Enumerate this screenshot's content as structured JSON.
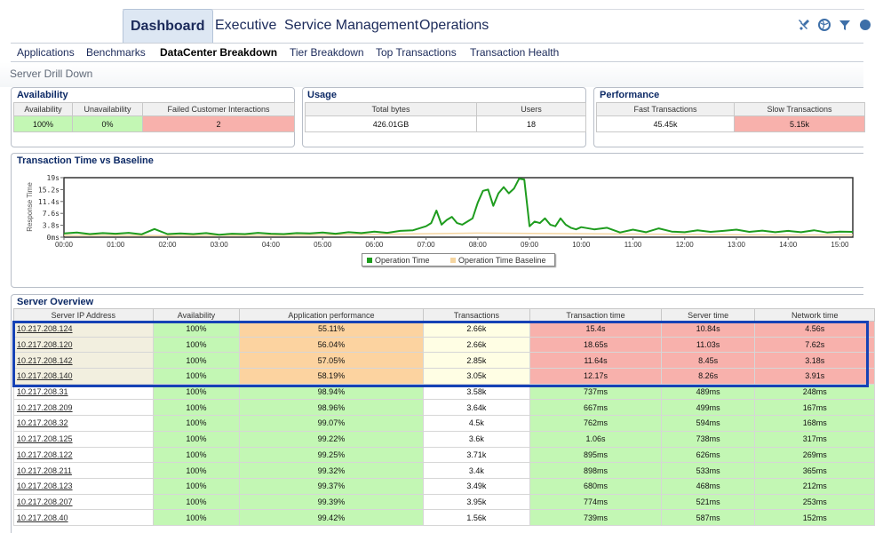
{
  "nav": {
    "main_tabs": [
      "Dashboard",
      "Executive",
      "Service Management",
      "Operations"
    ],
    "sub_tabs": [
      "Applications",
      "Benchmarks",
      "DataCenter Breakdown",
      "Tier Breakdown",
      "Top Transactions",
      "Transaction Health"
    ],
    "icons": [
      "tools-icon",
      "globe-icon",
      "filter-icon",
      "help-icon"
    ]
  },
  "page": {
    "title": "Server Drill Down"
  },
  "availability": {
    "title": "Availability",
    "headers": [
      "Availability",
      "Unavailability",
      "Failed Customer Interactions"
    ],
    "values": [
      "100%",
      "0%",
      "2"
    ]
  },
  "usage": {
    "title": "Usage",
    "headers": [
      "Total bytes",
      "Users"
    ],
    "values": [
      "426.01GB",
      "18"
    ]
  },
  "performance": {
    "title": "Performance",
    "headers": [
      "Fast Transactions",
      "Slow Transactions"
    ],
    "values": [
      "45.45k",
      "5.15k"
    ]
  },
  "chart_data": {
    "type": "line",
    "title": "Transaction Time vs Baseline",
    "ylabel": "Response Time",
    "xlabel": "",
    "y_ticks": [
      "0ms",
      "3.8s",
      "7.6s",
      "11.4s",
      "15.2s",
      "19s"
    ],
    "ylim": [
      0,
      19
    ],
    "x_ticks": [
      "00:00",
      "01:00",
      "02:00",
      "03:00",
      "04:00",
      "05:00",
      "06:00",
      "07:00",
      "08:00",
      "09:00",
      "10:00",
      "11:00",
      "12:00",
      "13:00",
      "14:00",
      "15:00"
    ],
    "legend_placement": "bottom-center",
    "series": [
      {
        "name": "Operation Time",
        "color": "#1e9c1e",
        "x_hours": [
          0,
          0.25,
          0.5,
          0.75,
          1,
          1.25,
          1.5,
          1.75,
          2,
          2.25,
          2.5,
          2.75,
          3,
          3.25,
          3.5,
          3.75,
          4,
          4.25,
          4.5,
          4.75,
          5,
          5.25,
          5.5,
          5.75,
          6,
          6.25,
          6.5,
          6.75,
          7,
          7.1,
          7.2,
          7.3,
          7.4,
          7.5,
          7.6,
          7.7,
          7.8,
          7.9,
          8,
          8.1,
          8.2,
          8.3,
          8.4,
          8.5,
          8.6,
          8.7,
          8.8,
          8.9,
          9,
          9.1,
          9.2,
          9.3,
          9.4,
          9.5,
          9.6,
          9.7,
          9.8,
          9.9,
          10,
          10.25,
          10.5,
          10.75,
          11,
          11.25,
          11.5,
          11.75,
          12,
          12.25,
          12.5,
          12.75,
          13,
          13.25,
          13.5,
          13.75,
          14,
          14.25,
          14.5,
          14.75,
          15,
          15.25
        ],
        "values": [
          1.2,
          1.5,
          1.0,
          1.3,
          1.1,
          1.4,
          0.9,
          2.6,
          1.0,
          1.2,
          1.0,
          1.3,
          0.8,
          1.1,
          1.0,
          1.4,
          1.1,
          1.0,
          1.3,
          1.2,
          1.5,
          1.1,
          1.6,
          1.3,
          1.8,
          1.4,
          2.0,
          2.2,
          3.5,
          4.5,
          8.5,
          4.0,
          5.5,
          6.5,
          4.5,
          4.0,
          5.0,
          6.0,
          11.0,
          14.8,
          15.2,
          10.0,
          14.0,
          16.0,
          14.0,
          15.5,
          18.7,
          18.4,
          3.5,
          5.0,
          4.5,
          6.0,
          4.0,
          3.5,
          6.0,
          4.0,
          3.0,
          2.5,
          3.2,
          2.5,
          3.0,
          1.5,
          2.4,
          1.6,
          2.8,
          1.8,
          1.6,
          2.2,
          1.7,
          2.0,
          2.4,
          1.7,
          2.1,
          1.6,
          2.0,
          1.6,
          2.2,
          1.5,
          1.8,
          1.7
        ]
      },
      {
        "name": "Operation Time Baseline",
        "color": "#f5d5a0",
        "x_hours": [
          0,
          1,
          2,
          3,
          4,
          5,
          6,
          7,
          8,
          9,
          10,
          11,
          12,
          13,
          14,
          15,
          15.25
        ],
        "values": [
          0.6,
          0.6,
          0.5,
          0.6,
          0.6,
          0.7,
          0.9,
          1.1,
          1.3,
          1.2,
          1.1,
          1.0,
          0.9,
          0.8,
          0.7,
          0.7,
          0.7
        ]
      }
    ]
  },
  "server_overview": {
    "title": "Server Overview",
    "headers": [
      "Server IP Address",
      "Availability",
      "Application performance",
      "Transactions",
      "Transaction time",
      "Server time",
      "Network time"
    ],
    "rows": [
      [
        "10.217.208.124",
        "100%",
        "55.11%",
        "2.66k",
        "15.4s",
        "10.84s",
        "4.56s"
      ],
      [
        "10.217.208.120",
        "100%",
        "56.04%",
        "2.66k",
        "18.65s",
        "11.03s",
        "7.62s"
      ],
      [
        "10.217.208.142",
        "100%",
        "57.05%",
        "2.85k",
        "11.64s",
        "8.45s",
        "3.18s"
      ],
      [
        "10.217.208.140",
        "100%",
        "58.19%",
        "3.05k",
        "12.17s",
        "8.26s",
        "3.91s"
      ],
      [
        "10.217.208.31",
        "100%",
        "98.94%",
        "3.58k",
        "737ms",
        "489ms",
        "248ms"
      ],
      [
        "10.217.208.209",
        "100%",
        "98.96%",
        "3.64k",
        "667ms",
        "499ms",
        "167ms"
      ],
      [
        "10.217.208.32",
        "100%",
        "99.07%",
        "4.5k",
        "762ms",
        "594ms",
        "168ms"
      ],
      [
        "10.217.208.125",
        "100%",
        "99.22%",
        "3.6k",
        "1.06s",
        "738ms",
        "317ms"
      ],
      [
        "10.217.208.122",
        "100%",
        "99.25%",
        "3.71k",
        "895ms",
        "626ms",
        "269ms"
      ],
      [
        "10.217.208.211",
        "100%",
        "99.32%",
        "3.4k",
        "898ms",
        "533ms",
        "365ms"
      ],
      [
        "10.217.208.123",
        "100%",
        "99.37%",
        "3.49k",
        "680ms",
        "468ms",
        "212ms"
      ],
      [
        "10.217.208.207",
        "100%",
        "99.39%",
        "3.95k",
        "774ms",
        "521ms",
        "253ms"
      ],
      [
        "10.217.208.40",
        "100%",
        "99.42%",
        "1.56k",
        "739ms",
        "587ms",
        "152ms"
      ]
    ],
    "degraded_rows": 4
  }
}
